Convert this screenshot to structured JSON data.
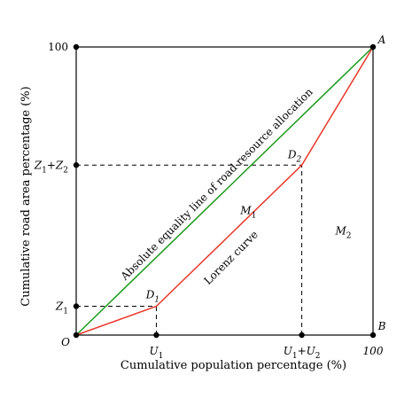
{
  "chart_data": {
    "type": "line",
    "xlabel": "Cumulative population percentage (%)",
    "ylabel": "Cumulative road area percentage (%)",
    "xlim": [
      0,
      100
    ],
    "ylim": [
      0,
      100
    ],
    "x_ticks": [
      {
        "value": 0,
        "label": "O"
      },
      {
        "value": 27,
        "label": "U1"
      },
      {
        "value": 76,
        "label": "U1+U2"
      },
      {
        "value": 100,
        "label": "100"
      }
    ],
    "y_ticks": [
      {
        "value": 10,
        "label": "Z1"
      },
      {
        "value": 59,
        "label": "Z1+Z2"
      },
      {
        "value": 100,
        "label": "100"
      }
    ],
    "series": [
      {
        "name": "Absolute equality line of road resource allocation",
        "color": "#1a9a1a",
        "x": [
          0,
          100
        ],
        "y": [
          0,
          100
        ]
      },
      {
        "name": "Lorenz curve",
        "color": "#e8382a",
        "x": [
          0,
          27,
          76,
          100
        ],
        "y": [
          0,
          10,
          59,
          100
        ]
      }
    ],
    "reference_lines": [
      {
        "from": [
          0,
          10
        ],
        "to": [
          27,
          10
        ]
      },
      {
        "from": [
          27,
          0
        ],
        "to": [
          27,
          10
        ]
      },
      {
        "from": [
          0,
          59
        ],
        "to": [
          76,
          59
        ]
      },
      {
        "from": [
          76,
          0
        ],
        "to": [
          76,
          59
        ]
      }
    ],
    "point_labels": [
      {
        "text": "A",
        "x": 100,
        "y": 100
      },
      {
        "text": "B",
        "x": 100,
        "y": 0
      },
      {
        "text": "D1",
        "x": 27,
        "y": 10
      },
      {
        "text": "D2",
        "x": 76,
        "y": 59
      }
    ],
    "region_labels": [
      {
        "text": "M1",
        "x": 58,
        "y": 42
      },
      {
        "text": "M2",
        "x": 90,
        "y": 35
      }
    ],
    "grid": false
  }
}
